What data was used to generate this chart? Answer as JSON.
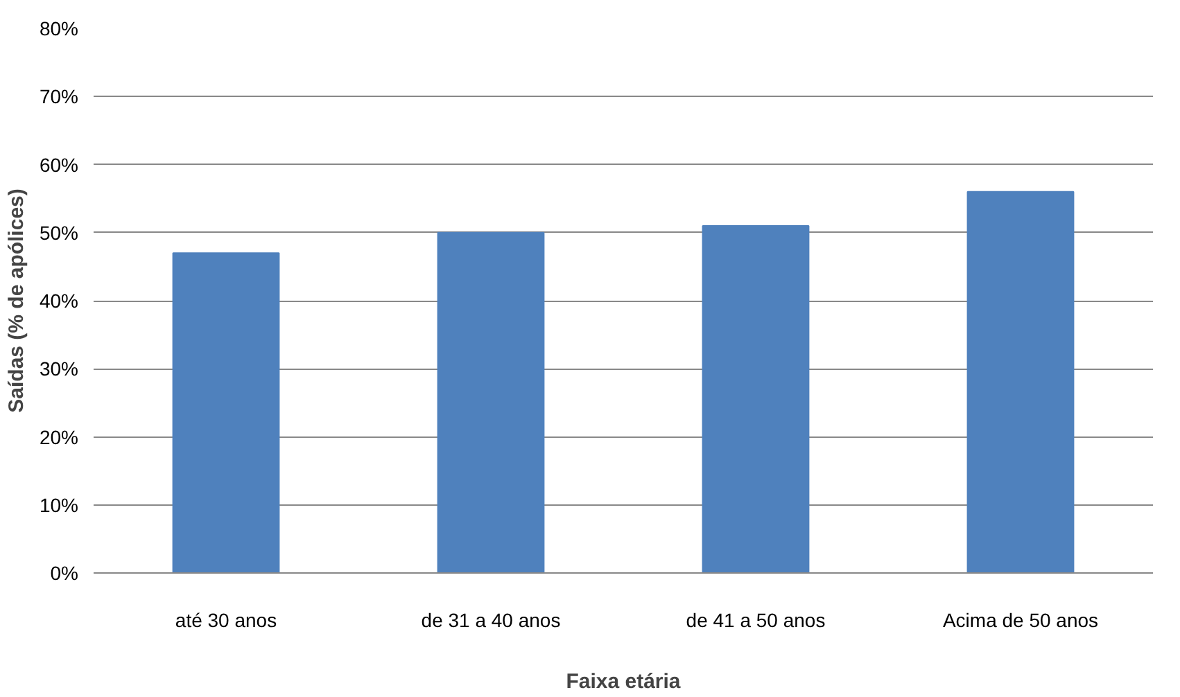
{
  "chart_data": {
    "type": "bar",
    "categories": [
      "até 30 anos",
      "de 31 a 40 anos",
      "de 41 a 50 anos",
      "Acima de 50 anos"
    ],
    "values": [
      47,
      50,
      51,
      56
    ],
    "color": "#4f81bd",
    "xlabel": "Faixa etária",
    "ylabel": "Saídas (% de apólices)",
    "ylim": [
      0,
      80
    ],
    "yticks": [
      {
        "value": 0,
        "label": "0%"
      },
      {
        "value": 10,
        "label": "10%"
      },
      {
        "value": 20,
        "label": "20%"
      },
      {
        "value": 30,
        "label": "30%"
      },
      {
        "value": 40,
        "label": "40%"
      },
      {
        "value": 50,
        "label": "50%"
      },
      {
        "value": 60,
        "label": "60%"
      },
      {
        "value": 70,
        "label": "70%"
      },
      {
        "value": 80,
        "label": "80%"
      }
    ],
    "grid": "y"
  }
}
